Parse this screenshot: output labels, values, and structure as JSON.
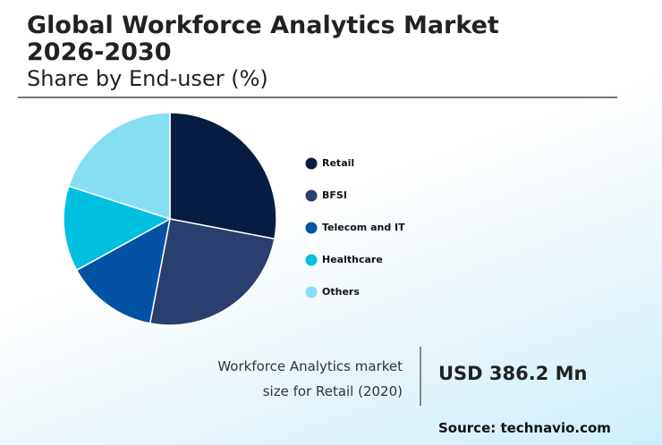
{
  "chart_data": {
    "type": "pie",
    "title": "Global Workforce Analytics Market 2026-2030",
    "subtitle": "Share by End-user (%)",
    "categories": [
      "Retail",
      "BFSI",
      "Telecom and IT",
      "Healthcare",
      "Others"
    ],
    "values": [
      28,
      25,
      14,
      13,
      20
    ],
    "colors": [
      "#071c42",
      "#2a3f6f",
      "#0452a3",
      "#00c0e0",
      "#86def4"
    ],
    "annotation": {
      "text": "Workforce Analytics market size for Retail (2020)",
      "value_label": "USD 386.2 Mn"
    },
    "source": "Source: technavio.com"
  }
}
